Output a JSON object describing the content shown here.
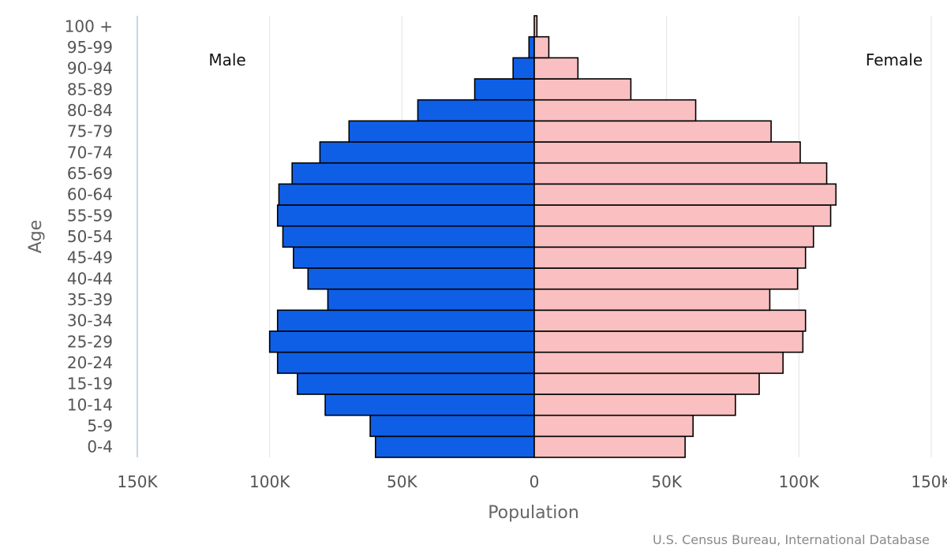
{
  "chart_data": {
    "type": "bar",
    "orientation": "horizontal",
    "subtype": "population-pyramid",
    "categories": [
      "0-4",
      "5-9",
      "10-14",
      "15-19",
      "20-24",
      "25-29",
      "30-34",
      "35-39",
      "40-44",
      "45-49",
      "50-54",
      "55-59",
      "60-64",
      "65-69",
      "70-74",
      "75-79",
      "80-84",
      "85-89",
      "90-94",
      "95-99",
      "100 +"
    ],
    "series": [
      {
        "name": "Male",
        "color": "#0f5fe6",
        "values": [
          60000,
          62000,
          79000,
          89500,
          97000,
          100000,
          97000,
          78000,
          85500,
          91000,
          95000,
          97000,
          96500,
          91500,
          81000,
          70000,
          44000,
          22500,
          8000,
          2000,
          0
        ]
      },
      {
        "name": "Female",
        "color": "#f9bfc1",
        "values": [
          57000,
          60000,
          76000,
          85000,
          94000,
          101500,
          102500,
          89000,
          99500,
          102500,
          105500,
          112000,
          114000,
          110500,
          100500,
          89500,
          61000,
          36500,
          16500,
          5500,
          1000
        ]
      }
    ],
    "xlim": [
      -150000,
      150000
    ],
    "xticks": [
      -150000,
      -100000,
      -50000,
      0,
      50000,
      100000,
      150000
    ],
    "xtick_labels": [
      "150K",
      "100K",
      "50K",
      "0",
      "50K",
      "100K",
      "150K"
    ],
    "xlabel": "Population",
    "ylabel": "Age",
    "left_label": "Male",
    "right_label": "Female",
    "credit": "U.S. Census Bureau, International Database",
    "grid": "vertical"
  }
}
